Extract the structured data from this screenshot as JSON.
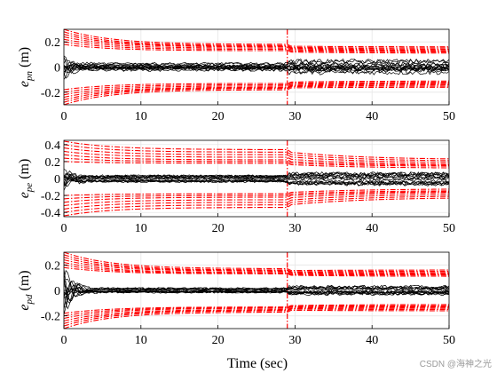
{
  "chart_data": [
    {
      "type": "line",
      "ylabel": {
        "main": "e",
        "sub": "pn",
        "unit": " (m)"
      },
      "xlabel": "",
      "xlim": [
        0,
        50
      ],
      "ylim": [
        -0.3,
        0.3
      ],
      "xticks": [
        "0",
        "10",
        "20",
        "30",
        "40",
        "50"
      ],
      "yticks": [
        "-0.2",
        "0",
        "0.2"
      ],
      "ytick_values": [
        -0.2,
        0,
        0.2
      ],
      "switch_time": 29,
      "series": [
        {
          "role": "bound",
          "color": "#ff0000",
          "start_values": [
            0.3,
            0.28,
            0.26,
            0.24,
            0.22,
            0.2,
            0.18
          ],
          "switch_values": [
            0.18,
            0.17,
            0.165,
            0.16,
            0.15,
            0.14,
            0.13
          ],
          "end_values": [
            0.16,
            0.15,
            0.14,
            0.13,
            0.125,
            0.12,
            0.11
          ]
        },
        {
          "role": "error",
          "color": "#000000",
          "steady_amplitude": 0.06,
          "transient_amplitude": 0.12
        }
      ]
    },
    {
      "type": "line",
      "ylabel": {
        "main": "e",
        "sub": "pe",
        "unit": " (m)"
      },
      "xlabel": "",
      "xlim": [
        0,
        50
      ],
      "ylim": [
        -0.45,
        0.45
      ],
      "xticks": [
        "0",
        "10",
        "20",
        "30",
        "40",
        "50"
      ],
      "yticks": [
        "-0.4",
        "-0.2",
        "0",
        "0.2",
        "0.4"
      ],
      "ytick_values": [
        -0.4,
        -0.2,
        0,
        0.2,
        0.4
      ],
      "switch_time": 29,
      "series": [
        {
          "role": "bound",
          "color": "#ff0000",
          "start_values": [
            0.44,
            0.4,
            0.36,
            0.32,
            0.28,
            0.24,
            0.2
          ],
          "switch_values": [
            0.34,
            0.31,
            0.28,
            0.25,
            0.22,
            0.2,
            0.18
          ],
          "end_values": [
            0.22,
            0.2,
            0.18,
            0.16,
            0.15,
            0.14,
            0.12
          ]
        },
        {
          "role": "error",
          "color": "#000000",
          "steady_amplitude": 0.08,
          "transient_amplitude": 0.14
        }
      ]
    },
    {
      "type": "line",
      "ylabel": {
        "main": "e",
        "sub": "pd",
        "unit": " (m)"
      },
      "xlabel": "Time (sec)",
      "xlim": [
        0,
        50
      ],
      "ylim": [
        -0.3,
        0.3
      ],
      "xticks": [
        "0",
        "10",
        "20",
        "30",
        "40",
        "50"
      ],
      "yticks": [
        "-0.2",
        "0",
        "0.2"
      ],
      "ytick_values": [
        -0.2,
        0,
        0.2
      ],
      "switch_time": 29,
      "series": [
        {
          "role": "bound",
          "color": "#ff0000",
          "start_values": [
            0.3,
            0.28,
            0.26,
            0.24,
            0.22,
            0.2,
            0.18
          ],
          "switch_values": [
            0.17,
            0.16,
            0.155,
            0.15,
            0.14,
            0.135,
            0.13
          ],
          "end_values": [
            0.16,
            0.15,
            0.14,
            0.13,
            0.125,
            0.12,
            0.11
          ]
        },
        {
          "role": "error",
          "color": "#000000",
          "steady_amplitude": 0.04,
          "transient_amplitude": 0.22
        }
      ]
    }
  ],
  "watermark": "CSDN @海神之光"
}
